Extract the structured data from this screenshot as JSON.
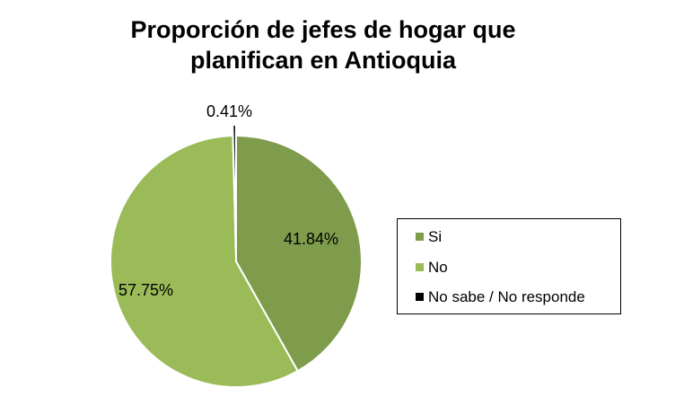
{
  "chart_data": {
    "type": "pie",
    "title_lines": [
      "Proporción de jefes de hogar que",
      "planifican en Antioquia"
    ],
    "categories": [
      "Si",
      "No",
      "No sabe / No responde"
    ],
    "values": [
      41.84,
      57.75,
      0.41
    ],
    "labels": [
      "41.84%",
      "57.75%",
      "0.41%"
    ],
    "colors": [
      "#7f9b4c",
      "#9bbb59",
      "#000000"
    ],
    "legend_position": "right"
  }
}
